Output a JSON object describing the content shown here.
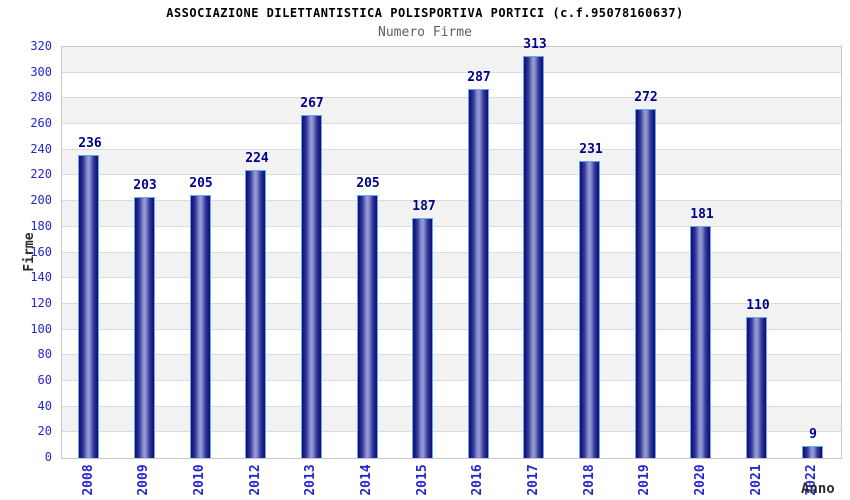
{
  "header": {
    "title": "ASSOCIAZIONE DILETTANTISTICA POLISPORTIVA PORTICI (c.f.95078160637)",
    "subtitle": "Numero Firme"
  },
  "chart_data": {
    "type": "bar",
    "title": "ASSOCIAZIONE DILETTANTISTICA POLISPORTIVA PORTICI (c.f.95078160637)",
    "subtitle": "Numero Firme",
    "categories": [
      "2008",
      "2009",
      "2010",
      "2012",
      "2013",
      "2014",
      "2015",
      "2016",
      "2017",
      "2018",
      "2019",
      "2020",
      "2021",
      "2022"
    ],
    "values": [
      236,
      203,
      205,
      224,
      267,
      205,
      187,
      287,
      313,
      231,
      272,
      181,
      110,
      9
    ],
    "xlabel": "Anno",
    "ylabel": "Firme",
    "ylim": [
      0,
      320
    ],
    "ytick_step": 20,
    "grid": true,
    "legend": "none",
    "colors": {
      "bar_dark": "#10106e",
      "bar_highlight": "#9aa0d8",
      "bar_border": "#64aaf0",
      "value_label": "#00008b",
      "tick_label": "#2626cf",
      "band_gray": "#f2f2f2",
      "band_white": "#ffffff",
      "grid_line": "#dcdcdc",
      "plot_border": "#c9c9c9",
      "title": "#000000",
      "subtitle": "#5f5f5f",
      "axis_title": "#2b2b2b"
    }
  }
}
